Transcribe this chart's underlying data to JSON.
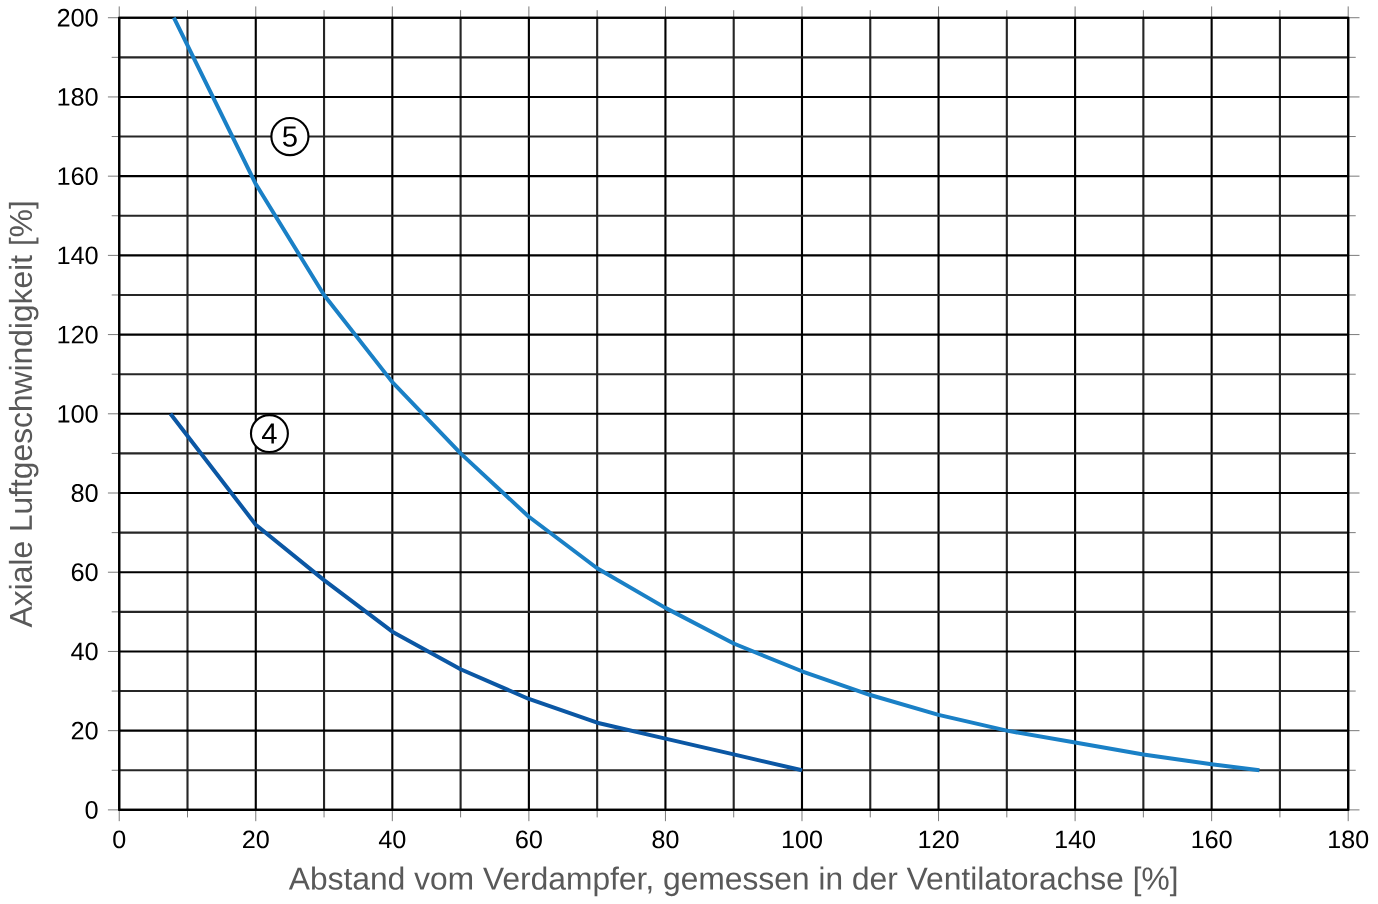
{
  "chart_data": {
    "type": "line",
    "xlabel": "Abstand vom Verdampfer, gemessen in der Ventilatorachse [%]",
    "ylabel": "Axiale Luftgeschwindigkeit [%]",
    "xlim": [
      0,
      180
    ],
    "ylim": [
      0,
      200
    ],
    "xticks": [
      0,
      20,
      40,
      60,
      80,
      100,
      120,
      140,
      160,
      180
    ],
    "yticks": [
      0,
      20,
      40,
      60,
      80,
      100,
      120,
      140,
      160,
      180,
      200
    ],
    "grid": true,
    "series": [
      {
        "color": "#1a80c6",
        "x": [
          8,
          20,
          30,
          40,
          50,
          60,
          70,
          80,
          90,
          100,
          110,
          120,
          130,
          140,
          150,
          160,
          167
        ],
        "values": [
          200,
          158,
          130,
          108,
          90,
          74,
          61,
          51,
          42,
          35,
          29,
          24,
          20,
          17,
          14,
          11.5,
          10
        ]
      },
      {
        "color": "#0b57a4",
        "x": [
          7.5,
          20,
          30,
          40,
          50,
          60,
          70,
          80,
          90,
          100
        ],
        "values": [
          100,
          72,
          58,
          45,
          35.5,
          28,
          22,
          18,
          14,
          10
        ]
      }
    ],
    "annotations": [
      {
        "text": "5",
        "x": 25,
        "y": 170
      },
      {
        "text": "4",
        "x": 22,
        "y": 95
      }
    ]
  }
}
